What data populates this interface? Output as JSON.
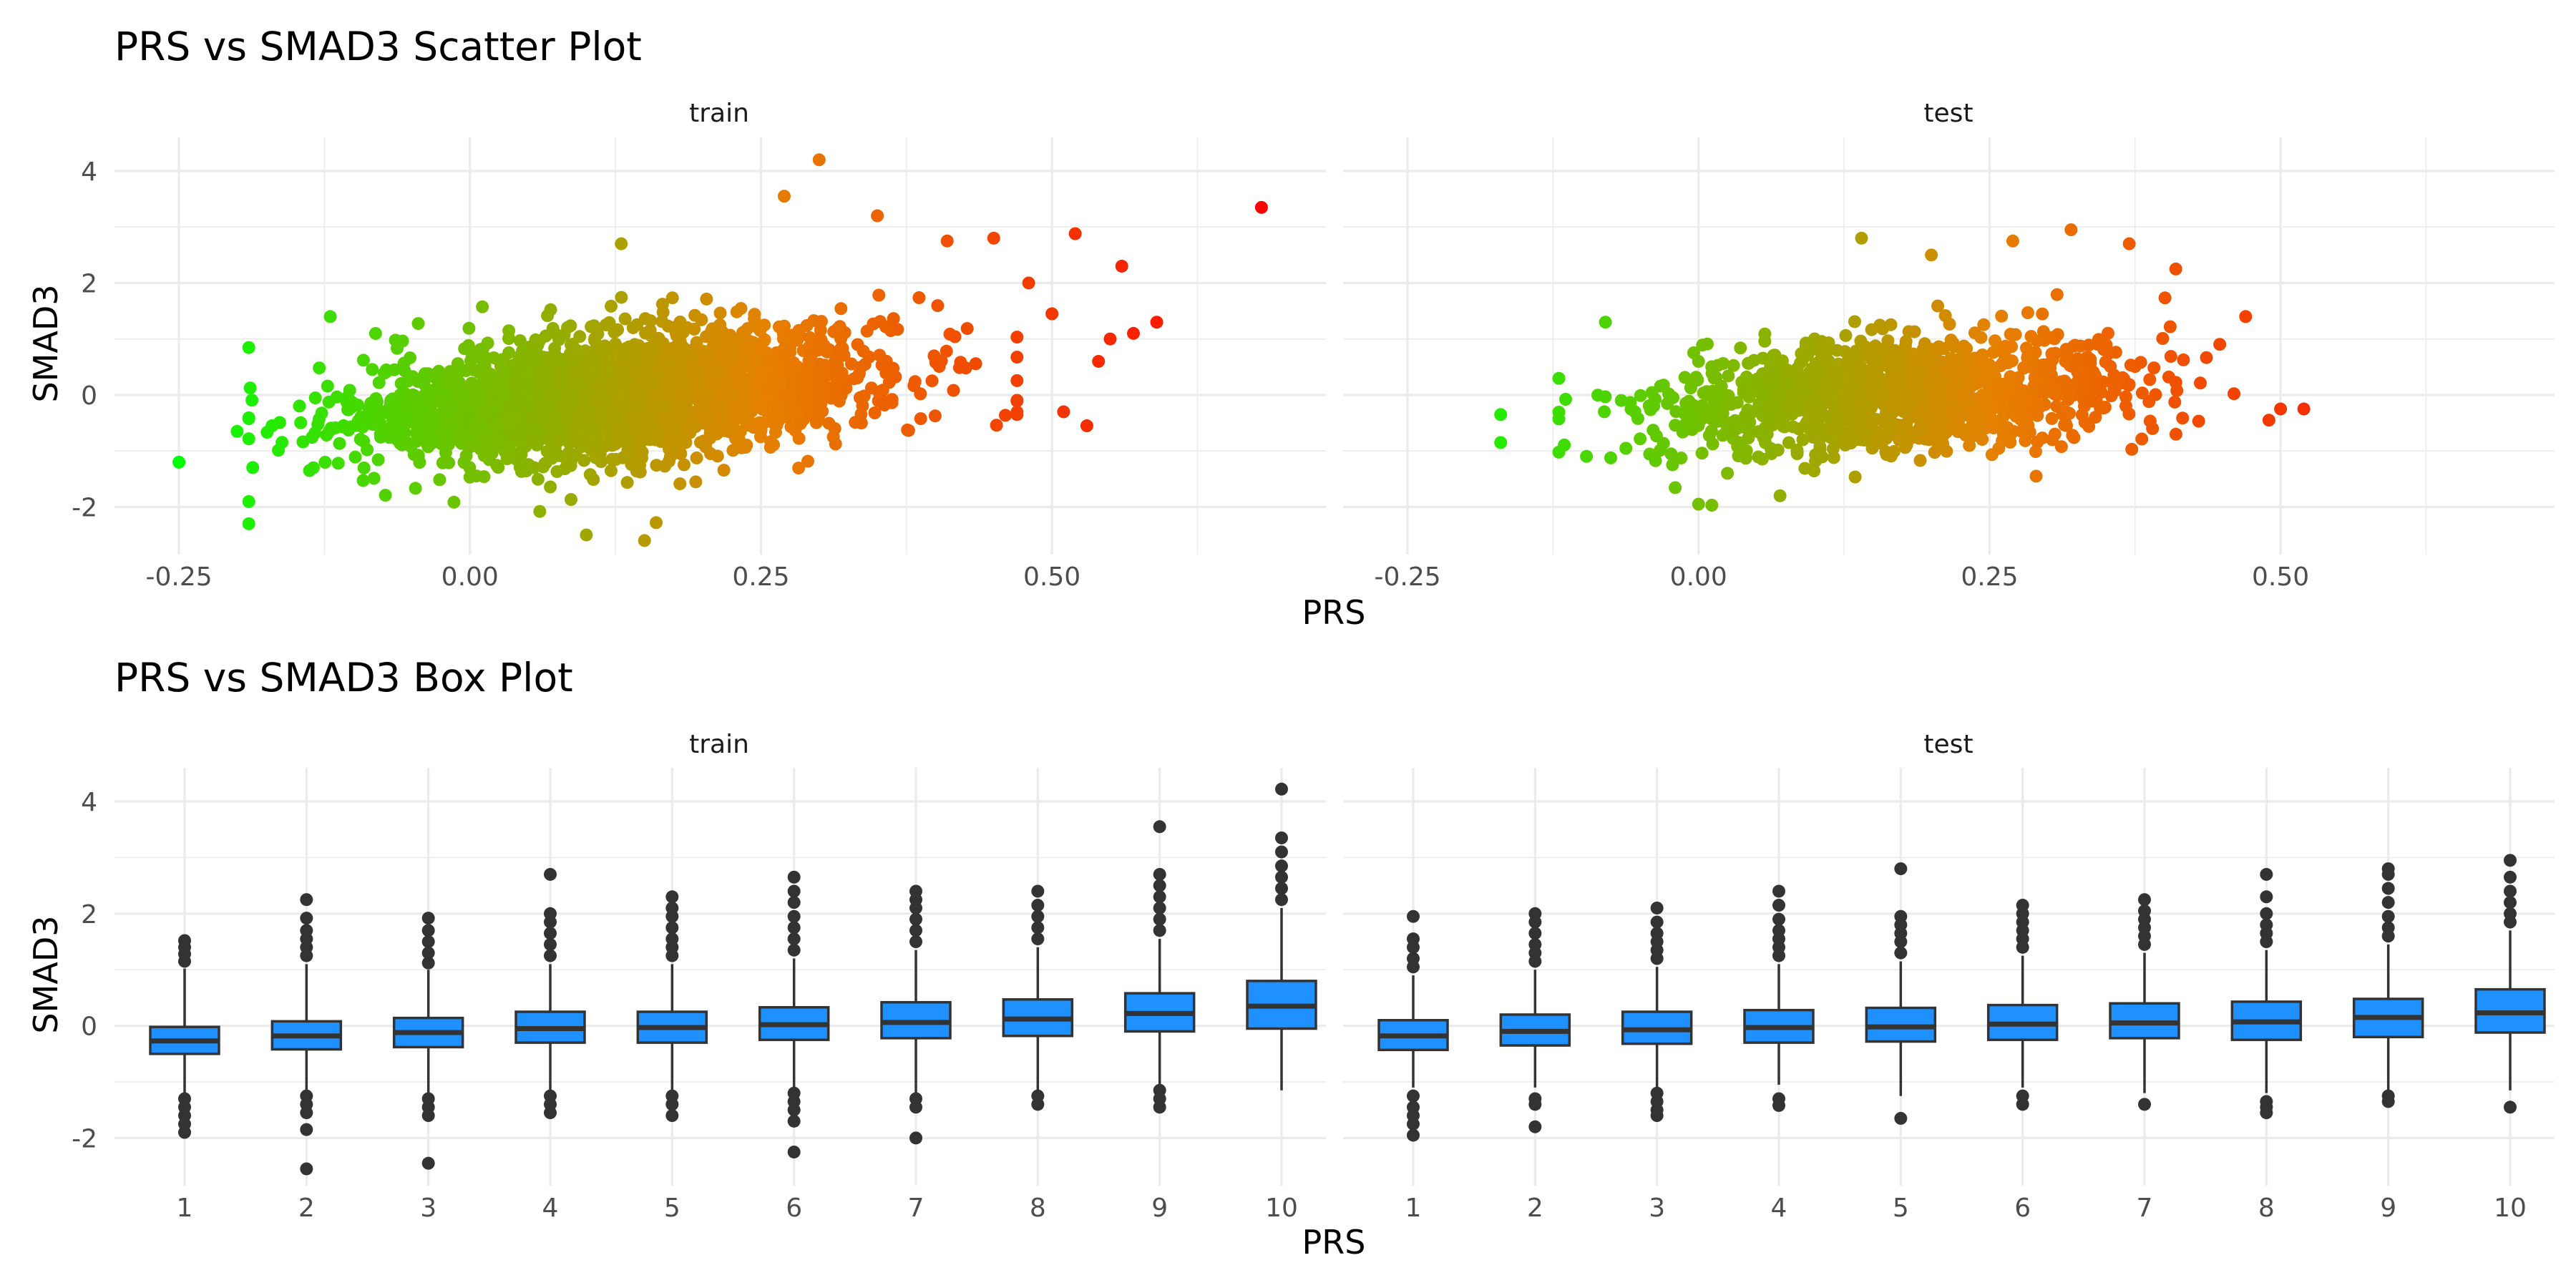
{
  "chart_data": [
    {
      "type": "scatter",
      "title": "PRS vs SMAD3 Scatter Plot",
      "xlabel": "PRS",
      "ylabel": "SMAD3",
      "facets": [
        "train",
        "test"
      ],
      "xlim": [
        -0.29,
        0.72
      ],
      "ylim": [
        -2.85,
        4.6
      ],
      "x_ticks": [
        -0.25,
        0.0,
        0.25,
        0.5
      ],
      "x_tick_labels": [
        "-0.25",
        "0.00",
        "0.25",
        "0.50"
      ],
      "y_ticks": [
        -2,
        0,
        2,
        4
      ],
      "y_tick_labels": [
        "-2",
        "0",
        "2",
        "4"
      ],
      "grid": true,
      "legend": "none",
      "color_scale": {
        "low": "#00ff00",
        "mid": "#e68000",
        "high": "#ff0000",
        "domain": [
          -0.25,
          0.68
        ]
      },
      "panels": [
        {
          "facet": "train",
          "distribution": {
            "n": 2400,
            "x_mean": 0.13,
            "x_sd": 0.11,
            "x_range": [
              -0.19,
              0.47
            ],
            "slope": 1.9,
            "y_sd": 0.55
          },
          "outliers": [
            [
              -0.25,
              -1.2
            ],
            [
              0.68,
              3.35
            ],
            [
              0.59,
              1.3
            ],
            [
              0.3,
              4.2
            ],
            [
              0.27,
              3.55
            ],
            [
              0.15,
              -2.6
            ],
            [
              0.1,
              -2.5
            ],
            [
              0.16,
              -2.28
            ],
            [
              0.06,
              -2.08
            ],
            [
              0.52,
              2.88
            ],
            [
              0.56,
              2.3
            ],
            [
              0.55,
              1.0
            ],
            [
              0.57,
              1.1
            ],
            [
              0.54,
              0.6
            ],
            [
              0.48,
              2.0
            ],
            [
              0.5,
              1.45
            ],
            [
              0.47,
              -0.35
            ],
            [
              0.51,
              -0.3
            ],
            [
              0.53,
              -0.55
            ],
            [
              -0.2,
              -0.65
            ],
            [
              -0.17,
              -0.55
            ],
            [
              -0.12,
              1.4
            ],
            [
              0.35,
              3.2
            ],
            [
              0.45,
              2.8
            ],
            [
              0.41,
              2.75
            ],
            [
              0.13,
              2.7
            ]
          ]
        },
        {
          "facet": "test",
          "distribution": {
            "n": 1300,
            "x_mean": 0.17,
            "x_sd": 0.1,
            "x_range": [
              -0.12,
              0.46
            ],
            "slope": 1.3,
            "y_sd": 0.5
          },
          "outliers": [
            [
              -0.17,
              -0.35
            ],
            [
              -0.17,
              -0.85
            ],
            [
              0.0,
              -1.95
            ],
            [
              -0.08,
              1.3
            ],
            [
              0.32,
              2.95
            ],
            [
              0.14,
              2.8
            ],
            [
              0.37,
              2.7
            ],
            [
              0.27,
              2.75
            ],
            [
              0.41,
              2.25
            ],
            [
              0.5,
              -0.25
            ],
            [
              0.52,
              -0.25
            ],
            [
              0.49,
              -0.45
            ],
            [
              0.47,
              1.4
            ],
            [
              0.39,
              -0.6
            ],
            [
              0.2,
              2.5
            ],
            [
              0.07,
              -1.8
            ],
            [
              0.29,
              -1.45
            ]
          ]
        }
      ]
    },
    {
      "type": "box",
      "title": "PRS vs SMAD3 Box Plot",
      "xlabel": "PRS",
      "ylabel": "SMAD3",
      "facets": [
        "train",
        "test"
      ],
      "categories": [
        "1",
        "2",
        "3",
        "4",
        "5",
        "6",
        "7",
        "8",
        "9",
        "10"
      ],
      "ylim": [
        -2.85,
        4.6
      ],
      "y_ticks": [
        -2,
        0,
        2,
        4
      ],
      "y_tick_labels": [
        "-2",
        "0",
        "2",
        "4"
      ],
      "grid": true,
      "fill": "#1e90ff",
      "panels": [
        {
          "facet": "train",
          "boxes": [
            {
              "category": "1",
              "q1": -0.5,
              "median": -0.27,
              "q3": -0.02,
              "lo": -1.2,
              "hi": 1.02,
              "out_hi": [
                1.15,
                1.28,
                1.4,
                1.52
              ],
              "out_lo": [
                -1.3,
                -1.45,
                -1.6,
                -1.75,
                -1.9
              ]
            },
            {
              "category": "2",
              "q1": -0.42,
              "median": -0.18,
              "q3": 0.08,
              "lo": -1.15,
              "hi": 1.1,
              "out_hi": [
                1.25,
                1.4,
                1.55,
                1.7,
                1.92,
                2.25
              ],
              "out_lo": [
                -1.25,
                -1.4,
                -1.55,
                -1.85,
                -2.55
              ]
            },
            {
              "category": "3",
              "q1": -0.38,
              "median": -0.12,
              "q3": 0.14,
              "lo": -1.2,
              "hi": 1.0,
              "out_hi": [
                1.12,
                1.3,
                1.5,
                1.7,
                1.92
              ],
              "out_lo": [
                -1.3,
                -1.45,
                -1.6,
                -2.45
              ]
            },
            {
              "category": "4",
              "q1": -0.3,
              "median": -0.05,
              "q3": 0.25,
              "lo": -1.15,
              "hi": 1.1,
              "out_hi": [
                1.25,
                1.45,
                1.65,
                1.85,
                2.0,
                2.7
              ],
              "out_lo": [
                -1.25,
                -1.4,
                -1.55
              ]
            },
            {
              "category": "5",
              "q1": -0.3,
              "median": -0.03,
              "q3": 0.25,
              "lo": -1.15,
              "hi": 1.1,
              "out_hi": [
                1.25,
                1.4,
                1.55,
                1.75,
                1.95,
                2.1,
                2.3
              ],
              "out_lo": [
                -1.25,
                -1.4,
                -1.6
              ]
            },
            {
              "category": "6",
              "q1": -0.25,
              "median": 0.02,
              "q3": 0.33,
              "lo": -1.1,
              "hi": 1.2,
              "out_hi": [
                1.35,
                1.55,
                1.75,
                1.95,
                2.2,
                2.4,
                2.65
              ],
              "out_lo": [
                -1.2,
                -1.35,
                -1.5,
                -1.7,
                -2.25
              ]
            },
            {
              "category": "7",
              "q1": -0.22,
              "median": 0.06,
              "q3": 0.42,
              "lo": -1.2,
              "hi": 1.35,
              "out_hi": [
                1.5,
                1.7,
                1.9,
                2.1,
                2.25,
                2.4
              ],
              "out_lo": [
                -1.3,
                -1.45,
                -2.0
              ]
            },
            {
              "category": "8",
              "q1": -0.18,
              "median": 0.12,
              "q3": 0.47,
              "lo": -1.15,
              "hi": 1.4,
              "out_hi": [
                1.55,
                1.75,
                1.95,
                2.15,
                2.4
              ],
              "out_lo": [
                -1.25,
                -1.4
              ]
            },
            {
              "category": "9",
              "q1": -0.1,
              "median": 0.22,
              "q3": 0.58,
              "lo": -1.05,
              "hi": 1.55,
              "out_hi": [
                1.7,
                1.9,
                2.1,
                2.3,
                2.5,
                2.7,
                3.55
              ],
              "out_lo": [
                -1.15,
                -1.3,
                -1.45
              ]
            },
            {
              "category": "10",
              "q1": -0.05,
              "median": 0.35,
              "q3": 0.8,
              "lo": -1.15,
              "hi": 2.1,
              "out_hi": [
                2.25,
                2.45,
                2.65,
                2.85,
                3.1,
                3.35,
                4.22
              ],
              "out_lo": []
            }
          ]
        },
        {
          "facet": "test",
          "boxes": [
            {
              "category": "1",
              "q1": -0.43,
              "median": -0.18,
              "q3": 0.1,
              "lo": -1.1,
              "hi": 0.9,
              "out_hi": [
                1.05,
                1.2,
                1.4,
                1.55,
                1.95
              ],
              "out_lo": [
                -1.25,
                -1.45,
                -1.6,
                -1.75,
                -1.95
              ]
            },
            {
              "category": "2",
              "q1": -0.35,
              "median": -0.1,
              "q3": 0.2,
              "lo": -1.1,
              "hi": 1.0,
              "out_hi": [
                1.15,
                1.3,
                1.45,
                1.65,
                1.85,
                2.0
              ],
              "out_lo": [
                -1.3,
                -1.4,
                -1.8
              ]
            },
            {
              "category": "3",
              "q1": -0.32,
              "median": -0.07,
              "q3": 0.25,
              "lo": -1.1,
              "hi": 1.05,
              "out_hi": [
                1.2,
                1.35,
                1.5,
                1.65,
                1.85,
                2.1
              ],
              "out_lo": [
                -1.2,
                -1.35,
                -1.5,
                -1.6
              ]
            },
            {
              "category": "4",
              "q1": -0.3,
              "median": -0.03,
              "q3": 0.28,
              "lo": -1.05,
              "hi": 1.1,
              "out_hi": [
                1.25,
                1.4,
                1.55,
                1.7,
                1.9,
                2.15,
                2.4
              ],
              "out_lo": [
                -1.3,
                -1.42
              ]
            },
            {
              "category": "5",
              "q1": -0.28,
              "median": -0.02,
              "q3": 0.32,
              "lo": -1.25,
              "hi": 1.15,
              "out_hi": [
                1.3,
                1.5,
                1.65,
                1.8,
                1.95,
                2.8
              ],
              "out_lo": [
                -1.65
              ]
            },
            {
              "category": "6",
              "q1": -0.25,
              "median": 0.03,
              "q3": 0.37,
              "lo": -1.1,
              "hi": 1.25,
              "out_hi": [
                1.4,
                1.55,
                1.7,
                1.85,
                2.0,
                2.15
              ],
              "out_lo": [
                -1.25,
                -1.4
              ]
            },
            {
              "category": "7",
              "q1": -0.22,
              "median": 0.05,
              "q3": 0.4,
              "lo": -1.2,
              "hi": 1.3,
              "out_hi": [
                1.45,
                1.6,
                1.75,
                1.9,
                2.05,
                2.25
              ],
              "out_lo": [
                -1.4
              ]
            },
            {
              "category": "8",
              "q1": -0.25,
              "median": 0.07,
              "q3": 0.43,
              "lo": -1.2,
              "hi": 1.35,
              "out_hi": [
                1.5,
                1.65,
                1.8,
                2.0,
                2.3,
                2.7
              ],
              "out_lo": [
                -1.35,
                -1.45,
                -1.55
              ]
            },
            {
              "category": "9",
              "q1": -0.2,
              "median": 0.15,
              "q3": 0.48,
              "lo": -1.15,
              "hi": 1.45,
              "out_hi": [
                1.6,
                1.75,
                1.95,
                2.2,
                2.45,
                2.7,
                2.8
              ],
              "out_lo": [
                -1.25,
                -1.35
              ]
            },
            {
              "category": "10",
              "q1": -0.12,
              "median": 0.23,
              "q3": 0.65,
              "lo": -1.15,
              "hi": 1.7,
              "out_hi": [
                1.85,
                2.0,
                2.2,
                2.4,
                2.65,
                2.95
              ],
              "out_lo": [
                -1.45
              ]
            }
          ]
        }
      ]
    }
  ]
}
